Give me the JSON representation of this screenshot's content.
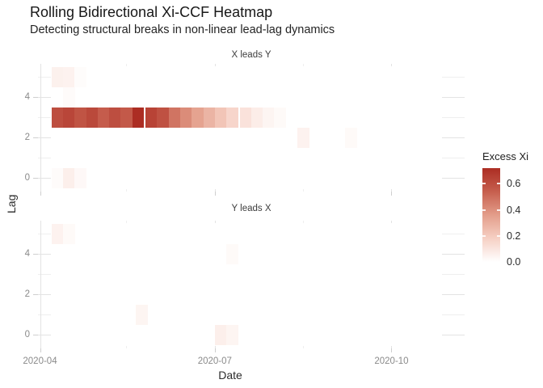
{
  "figure": {
    "title": "Rolling Bidirectional Xi-CCF Heatmap",
    "subtitle": "Detecting structural breaks in non-linear lead-lag dynamics"
  },
  "axes": {
    "x_title": "Date",
    "y_title": "Lag",
    "x_tick_labels": [
      "2020-04",
      "2020-07",
      "2020-10"
    ],
    "y_tick_labels": [
      "0",
      "2",
      "4"
    ]
  },
  "legend": {
    "title": "Excess Xi",
    "tick_labels": [
      "0.6",
      "0.4",
      "0.2",
      "0.0"
    ]
  },
  "chart_data": {
    "type": "heatmap",
    "title": "Rolling Bidirectional Xi-CCF Heatmap",
    "subtitle": "Detecting structural breaks in non-linear lead-lag dynamics",
    "xlabel": "Date",
    "ylabel": "Lag",
    "x_ticks": [
      "2020-04-01",
      "2020-07-01",
      "2020-10-01"
    ],
    "x_minor_ticks": [
      "2020-05-16",
      "2020-08-16"
    ],
    "y_ticks": [
      0,
      2,
      4
    ],
    "y_minor_ticks": [
      1,
      3,
      5
    ],
    "lag_domain": [
      0,
      5
    ],
    "value_domain": [
      0,
      0.72
    ],
    "grid": true,
    "colorbar": {
      "title": "Excess Xi",
      "ticks": [
        0.0,
        0.2,
        0.4,
        0.6
      ],
      "low": "#ffffff",
      "high": "#ac2d23",
      "position": "right"
    },
    "facets": [
      {
        "label": "X leads Y",
        "tiles": [
          {
            "date": "2020-04-07",
            "lag": 5,
            "value": 0.055
          },
          {
            "date": "2020-04-13",
            "lag": 5,
            "value": 0.05
          },
          {
            "date": "2020-04-19",
            "lag": 5,
            "value": 0.012
          },
          {
            "date": "2020-04-13",
            "lag": 4,
            "value": 0.015
          },
          {
            "date": "2020-04-07",
            "lag": 3,
            "value": 0.6
          },
          {
            "date": "2020-04-13",
            "lag": 3,
            "value": 0.63
          },
          {
            "date": "2020-04-19",
            "lag": 3,
            "value": 0.58
          },
          {
            "date": "2020-04-25",
            "lag": 3,
            "value": 0.62
          },
          {
            "date": "2020-05-01",
            "lag": 3,
            "value": 0.55
          },
          {
            "date": "2020-05-07",
            "lag": 3,
            "value": 0.6
          },
          {
            "date": "2020-05-13",
            "lag": 3,
            "value": 0.56
          },
          {
            "date": "2020-05-19",
            "lag": 3,
            "value": 0.72
          },
          {
            "date": "2020-05-26",
            "lag": 3,
            "value": 0.64
          },
          {
            "date": "2020-06-01",
            "lag": 3,
            "value": 0.59
          },
          {
            "date": "2020-06-07",
            "lag": 3,
            "value": 0.48
          },
          {
            "date": "2020-06-13",
            "lag": 3,
            "value": 0.41
          },
          {
            "date": "2020-06-19",
            "lag": 3,
            "value": 0.34
          },
          {
            "date": "2020-06-25",
            "lag": 3,
            "value": 0.28
          },
          {
            "date": "2020-07-01",
            "lag": 3,
            "value": 0.22
          },
          {
            "date": "2020-07-07",
            "lag": 3,
            "value": 0.16
          },
          {
            "date": "2020-07-14",
            "lag": 3,
            "value": 0.11
          },
          {
            "date": "2020-07-20",
            "lag": 3,
            "value": 0.07
          },
          {
            "date": "2020-07-26",
            "lag": 3,
            "value": 0.04
          },
          {
            "date": "2020-08-01",
            "lag": 3,
            "value": 0.02
          },
          {
            "date": "2020-08-13",
            "lag": 2,
            "value": 0.05
          },
          {
            "date": "2020-09-07",
            "lag": 2,
            "value": 0.02
          },
          {
            "date": "2020-04-07",
            "lag": 0,
            "value": 0.015
          },
          {
            "date": "2020-04-13",
            "lag": 0,
            "value": 0.06
          },
          {
            "date": "2020-04-19",
            "lag": 0,
            "value": 0.025
          }
        ]
      },
      {
        "label": "Y leads X",
        "tiles": [
          {
            "date": "2020-04-07",
            "lag": 5,
            "value": 0.05
          },
          {
            "date": "2020-04-13",
            "lag": 5,
            "value": 0.02
          },
          {
            "date": "2020-07-07",
            "lag": 4,
            "value": 0.02
          },
          {
            "date": "2020-05-21",
            "lag": 1,
            "value": 0.04
          },
          {
            "date": "2020-07-01",
            "lag": 0,
            "value": 0.06
          },
          {
            "date": "2020-07-07",
            "lag": 0,
            "value": 0.04
          }
        ]
      }
    ]
  }
}
